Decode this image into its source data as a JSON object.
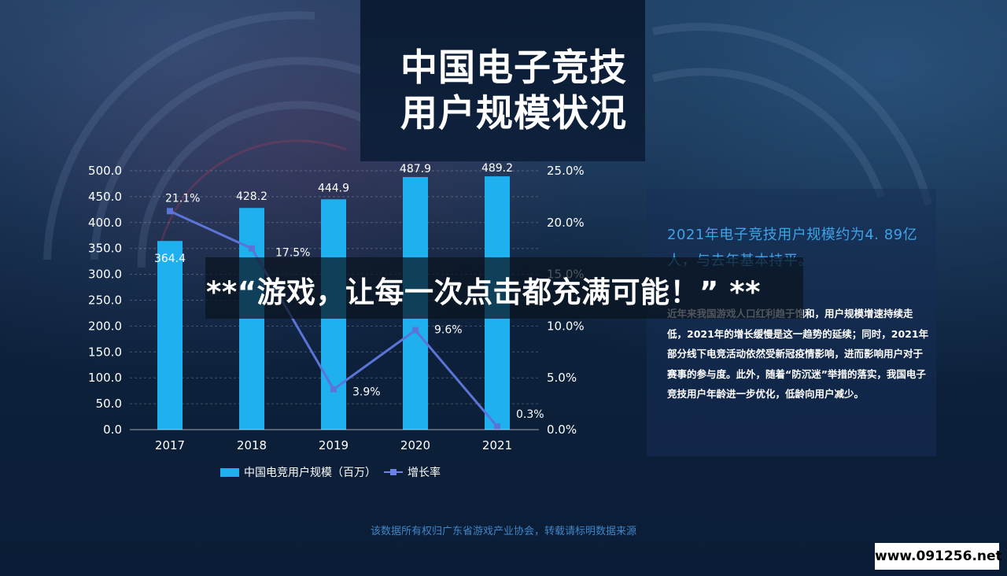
{
  "title": {
    "line1": "中国电子竞技",
    "line2": "用户规模状况"
  },
  "chart_data": {
    "type": "bar",
    "categories": [
      "2017",
      "2018",
      "2019",
      "2020",
      "2021"
    ],
    "series": [
      {
        "name": "中国电竞用户规模（百万）",
        "type": "bar",
        "axis": "left",
        "values": [
          364.4,
          428.2,
          444.9,
          487.9,
          489.2
        ],
        "labels": [
          "364.4",
          "428.2",
          "444.9",
          "487.9",
          "489.2"
        ],
        "color": "#1fb0f0"
      },
      {
        "name": "增长率",
        "type": "line",
        "axis": "right",
        "values": [
          21.1,
          17.5,
          3.9,
          9.6,
          0.3
        ],
        "labels": [
          "21.1%",
          "17.5%",
          "3.9%",
          "9.6%",
          "0.3%"
        ],
        "color": "#5b74d8"
      }
    ],
    "y_left": {
      "range": [
        0,
        500
      ],
      "ticks": [
        "0.0",
        "50.0",
        "100.0",
        "150.0",
        "200.0",
        "250.0",
        "300.0",
        "350.0",
        "400.0",
        "450.0",
        "500.0"
      ]
    },
    "y_right": {
      "range": [
        0,
        25
      ],
      "ticks": [
        "0.0%",
        "5.0%",
        "10.0%",
        "15.0%",
        "20.0%",
        "25.0%"
      ]
    },
    "grid": true,
    "legend_position": "bottom"
  },
  "info": {
    "headline": "2021年电子竞技用户规模约为4. 89亿人，与去年基本持平。",
    "body": "近年来我国游戏人口红利趋于饱和，用户规模增速持续走低，2021年的增长缓慢是这一趋势的延续；同时，2021年部分线下电竞活动依然受新冠疫情影响，进而影响用户对于赛事的参与度。此外，随着“防沉迷”举措的落实，我国电子竞技用户年龄进一步优化，低龄向用户减少。"
  },
  "banner": "**“游戏，让每一次点击都充满可能！” **",
  "footer_note": "该数据所有权归广东省游戏产业协会，转载请标明数据来源",
  "watermark": "www.091256.net",
  "colors": {
    "background": "#0a1c35",
    "bar": "#1fb0f0",
    "line": "#5b74d8",
    "headline": "#3fa2e8"
  }
}
